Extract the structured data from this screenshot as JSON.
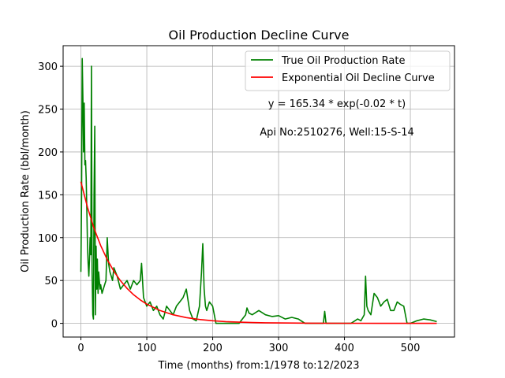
{
  "chart_data": {
    "type": "line",
    "title": "Oil Production Decline Curve",
    "xlabel": "Time (months) from:1/1978 to:12/2023",
    "ylabel": "Oil Production Rate (bbl/month)",
    "xlim": [
      -27,
      567
    ],
    "ylim": [
      -16,
      324
    ],
    "xticks": [
      0,
      100,
      200,
      300,
      400,
      500
    ],
    "yticks": [
      0,
      50,
      100,
      150,
      200,
      250,
      300
    ],
    "grid": true,
    "legend_position": "top-right",
    "annotations": [
      {
        "text": "y = 165.34 * exp(-0.02 * t)",
        "x": 385,
        "y": 253
      },
      {
        "text": "Api No:2510276, Well:15-S-14",
        "x": 385,
        "y": 220
      }
    ],
    "series": [
      {
        "name": "True Oil Production Rate",
        "color": "#008000",
        "x": [
          0,
          1,
          2,
          3,
          4,
          5,
          6,
          7,
          8,
          9,
          10,
          11,
          12,
          13,
          14,
          15,
          16,
          17,
          18,
          19,
          20,
          21,
          22,
          23,
          24,
          25,
          26,
          27,
          28,
          29,
          30,
          32,
          34,
          36,
          38,
          40,
          42,
          44,
          46,
          48,
          50,
          55,
          60,
          65,
          70,
          75,
          80,
          85,
          90,
          92,
          95,
          100,
          105,
          110,
          115,
          120,
          125,
          130,
          135,
          140,
          145,
          150,
          155,
          160,
          165,
          170,
          175,
          180,
          183,
          185,
          187,
          189,
          191,
          195,
          200,
          205,
          210,
          220,
          230,
          240,
          250,
          252,
          255,
          260,
          270,
          280,
          290,
          300,
          310,
          320,
          330,
          340,
          350,
          360,
          368,
          370,
          372,
          380,
          390,
          400,
          410,
          420,
          425,
          430,
          432,
          434,
          436,
          440,
          445,
          450,
          455,
          460,
          465,
          470,
          475,
          480,
          485,
          490,
          495,
          500,
          510,
          520,
          530,
          540
        ],
        "y": [
          60,
          150,
          309,
          260,
          200,
          257,
          185,
          190,
          170,
          130,
          90,
          70,
          55,
          75,
          100,
          80,
          300,
          60,
          10,
          5,
          150,
          230,
          10,
          90,
          40,
          75,
          35,
          60,
          50,
          40,
          45,
          35,
          40,
          45,
          50,
          100,
          70,
          60,
          55,
          50,
          65,
          55,
          40,
          45,
          50,
          40,
          50,
          45,
          50,
          70,
          30,
          20,
          25,
          15,
          20,
          10,
          5,
          20,
          15,
          10,
          20,
          25,
          30,
          40,
          15,
          5,
          3,
          20,
          60,
          93,
          40,
          20,
          15,
          25,
          20,
          0,
          0,
          0,
          0,
          0,
          10,
          18,
          12,
          10,
          15,
          10,
          8,
          9,
          5,
          7,
          5,
          0,
          0,
          0,
          0,
          14,
          0,
          0,
          0,
          0,
          0,
          5,
          3,
          10,
          55,
          20,
          15,
          10,
          35,
          30,
          20,
          25,
          28,
          15,
          15,
          25,
          22,
          20,
          0,
          0,
          3,
          5,
          4,
          2
        ]
      },
      {
        "name": "Exponential Oil Decline Curve",
        "color": "#ff0000",
        "equation": "y = 165.34 * exp(-0.02 * t)",
        "x": [
          0,
          10,
          20,
          30,
          40,
          50,
          60,
          70,
          80,
          90,
          100,
          120,
          140,
          160,
          180,
          200,
          220,
          240,
          260,
          280,
          300,
          350,
          400,
          450,
          500,
          540
        ],
        "y": [
          165.34,
          135.37,
          110.83,
          90.74,
          74.29,
          60.82,
          49.8,
          40.77,
          33.38,
          27.33,
          22.38,
          15.0,
          10.05,
          6.74,
          4.52,
          3.03,
          2.03,
          1.36,
          0.91,
          0.61,
          0.41,
          0.15,
          0.06,
          0.02,
          0.01,
          0.0
        ]
      }
    ]
  }
}
